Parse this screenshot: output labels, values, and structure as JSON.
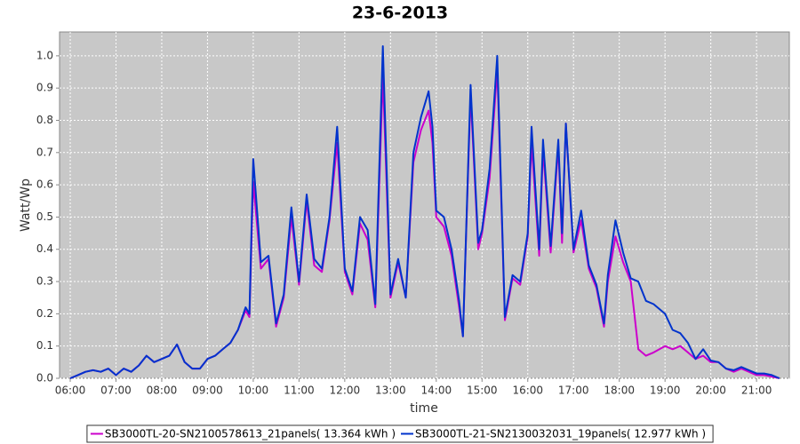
{
  "chart_data": {
    "type": "line",
    "title": "23-6-2013",
    "xlabel": "time",
    "ylabel": "Watt/Wp",
    "x": [
      "06:00",
      "06:10",
      "06:20",
      "06:30",
      "06:40",
      "06:50",
      "07:00",
      "07:10",
      "07:20",
      "07:30",
      "07:40",
      "07:50",
      "08:00",
      "08:10",
      "08:20",
      "08:30",
      "08:40",
      "08:50",
      "09:00",
      "09:10",
      "09:20",
      "09:30",
      "09:40",
      "09:50",
      "09:55",
      "10:00",
      "10:10",
      "10:20",
      "10:30",
      "10:40",
      "10:50",
      "11:00",
      "11:10",
      "11:20",
      "11:30",
      "11:40",
      "11:50",
      "12:00",
      "12:10",
      "12:20",
      "12:30",
      "12:40",
      "12:50",
      "13:00",
      "13:10",
      "13:20",
      "13:30",
      "13:40",
      "13:50",
      "13:55",
      "14:00",
      "14:10",
      "14:20",
      "14:30",
      "14:35",
      "14:45",
      "14:55",
      "15:00",
      "15:10",
      "15:20",
      "15:30",
      "15:40",
      "15:50",
      "16:00",
      "16:05",
      "16:15",
      "16:20",
      "16:30",
      "16:40",
      "16:45",
      "16:50",
      "17:00",
      "17:10",
      "17:20",
      "17:30",
      "17:40",
      "17:45",
      "17:55",
      "18:05",
      "18:15",
      "18:25",
      "18:35",
      "18:45",
      "19:00",
      "19:10",
      "19:20",
      "19:30",
      "19:40",
      "19:50",
      "20:00",
      "20:10",
      "20:20",
      "20:30",
      "20:40",
      "20:50",
      "21:00",
      "21:10",
      "21:20",
      "21:30"
    ],
    "series": [
      {
        "name": "SB3000TL-20-SN2100578613_21panels( 13.364 kWh )",
        "color": "#cc00cc",
        "values": [
          0,
          0.01,
          0.02,
          0.025,
          0.02,
          0.03,
          0.01,
          0.03,
          0.02,
          0.04,
          0.07,
          0.05,
          0.06,
          0.07,
          0.105,
          0.05,
          0.03,
          0.03,
          0.06,
          0.07,
          0.09,
          0.11,
          0.15,
          0.21,
          0.19,
          0.61,
          0.34,
          0.37,
          0.16,
          0.25,
          0.5,
          0.29,
          0.55,
          0.35,
          0.33,
          0.49,
          0.73,
          0.33,
          0.26,
          0.48,
          0.43,
          0.22,
          0.94,
          0.25,
          0.36,
          0.25,
          0.67,
          0.77,
          0.83,
          0.73,
          0.5,
          0.47,
          0.38,
          0.22,
          0.13,
          0.88,
          0.4,
          0.45,
          0.62,
          0.96,
          0.18,
          0.31,
          0.29,
          0.44,
          0.73,
          0.38,
          0.71,
          0.39,
          0.72,
          0.42,
          0.79,
          0.39,
          0.49,
          0.34,
          0.28,
          0.16,
          0.3,
          0.44,
          0.36,
          0.3,
          0.09,
          0.07,
          0.08,
          0.1,
          0.09,
          0.1,
          0.08,
          0.06,
          0.07,
          0.05,
          0.05,
          0.03,
          0.02,
          0.03,
          0.02,
          0.01,
          0.01,
          0.005,
          0
        ]
      },
      {
        "name": "SB3000TL-21-SN2130032031_19panels( 12.977 kWh )",
        "color": "#0033cc",
        "values": [
          0,
          0.01,
          0.02,
          0.025,
          0.02,
          0.03,
          0.01,
          0.03,
          0.02,
          0.04,
          0.07,
          0.05,
          0.06,
          0.07,
          0.105,
          0.05,
          0.03,
          0.03,
          0.06,
          0.07,
          0.09,
          0.11,
          0.15,
          0.22,
          0.2,
          0.68,
          0.36,
          0.38,
          0.17,
          0.26,
          0.53,
          0.3,
          0.57,
          0.37,
          0.34,
          0.5,
          0.78,
          0.34,
          0.27,
          0.5,
          0.46,
          0.23,
          1.03,
          0.26,
          0.37,
          0.25,
          0.7,
          0.81,
          0.89,
          0.78,
          0.52,
          0.5,
          0.4,
          0.24,
          0.13,
          0.91,
          0.42,
          0.46,
          0.65,
          1.0,
          0.19,
          0.32,
          0.3,
          0.45,
          0.78,
          0.4,
          0.74,
          0.41,
          0.74,
          0.45,
          0.79,
          0.4,
          0.52,
          0.35,
          0.29,
          0.17,
          0.32,
          0.49,
          0.39,
          0.31,
          0.3,
          0.24,
          0.23,
          0.2,
          0.15,
          0.14,
          0.11,
          0.06,
          0.09,
          0.055,
          0.05,
          0.03,
          0.025,
          0.035,
          0.025,
          0.015,
          0.015,
          0.01,
          0
        ]
      }
    ],
    "xlim": [
      "05:46",
      "21:43"
    ],
    "xticks": [
      "06:00",
      "07:00",
      "08:00",
      "09:00",
      "10:00",
      "11:00",
      "12:00",
      "13:00",
      "14:00",
      "15:00",
      "16:00",
      "17:00",
      "18:00",
      "19:00",
      "20:00",
      "21:00"
    ],
    "ylim": [
      0,
      1.074
    ],
    "yticks": [
      {
        "value": 0,
        "label": "0.0"
      },
      {
        "value": 0.1,
        "label": "0.1"
      },
      {
        "value": 0.2,
        "label": "0.2"
      },
      {
        "value": 0.3,
        "label": "0.3"
      },
      {
        "value": 0.4,
        "label": "0.4"
      },
      {
        "value": 0.5,
        "label": "0.5"
      },
      {
        "value": 0.6,
        "label": "0.6"
      },
      {
        "value": 0.7,
        "label": "0.7"
      },
      {
        "value": 0.8,
        "label": "0.8"
      },
      {
        "value": 0.9,
        "label": "0.9"
      },
      {
        "value": 1,
        "label": "1.0"
      }
    ],
    "grid": true,
    "legend": "bottom"
  }
}
